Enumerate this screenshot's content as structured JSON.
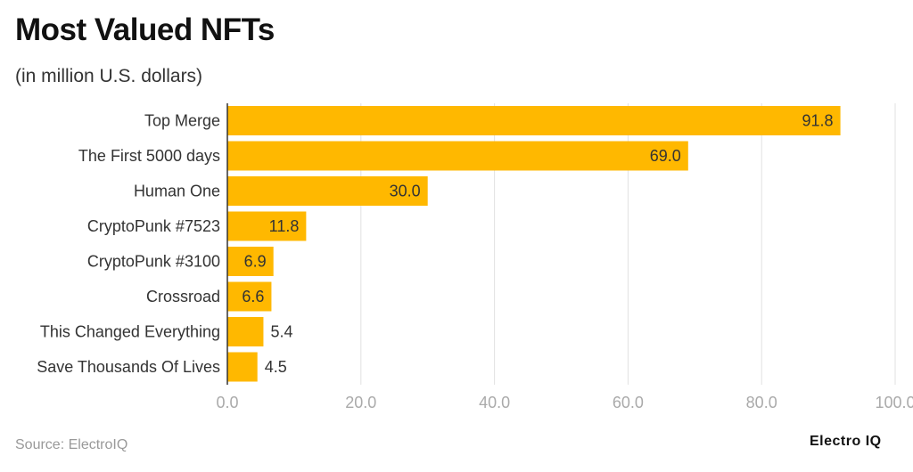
{
  "title": "Most Valued NFTs",
  "subtitle": "(in million U.S. dollars)",
  "source": "Source: ElectroIQ",
  "logo": "Electro IQ",
  "chart_data": {
    "type": "bar",
    "orientation": "horizontal",
    "categories": [
      "Top Merge",
      "The First 5000 days",
      "Human One",
      "CryptoPunk #7523",
      "CryptoPunk #3100",
      "Crossroad",
      "This Changed Everything",
      "Save Thousands Of Lives"
    ],
    "values": [
      91.8,
      69.0,
      30.0,
      11.8,
      6.9,
      6.6,
      5.4,
      4.5
    ],
    "value_labels": [
      "91.8",
      "69.0",
      "30.0",
      "11.8",
      "6.9",
      "6.6",
      "5.4",
      "4.5"
    ],
    "xlim": [
      0,
      100
    ],
    "xticks": [
      0,
      20,
      40,
      60,
      80,
      100
    ],
    "xtick_labels": [
      "0.0",
      "20.0",
      "40.0",
      "60.0",
      "80.0",
      "100.0"
    ],
    "grid": true,
    "bar_color": "#FFB800"
  }
}
